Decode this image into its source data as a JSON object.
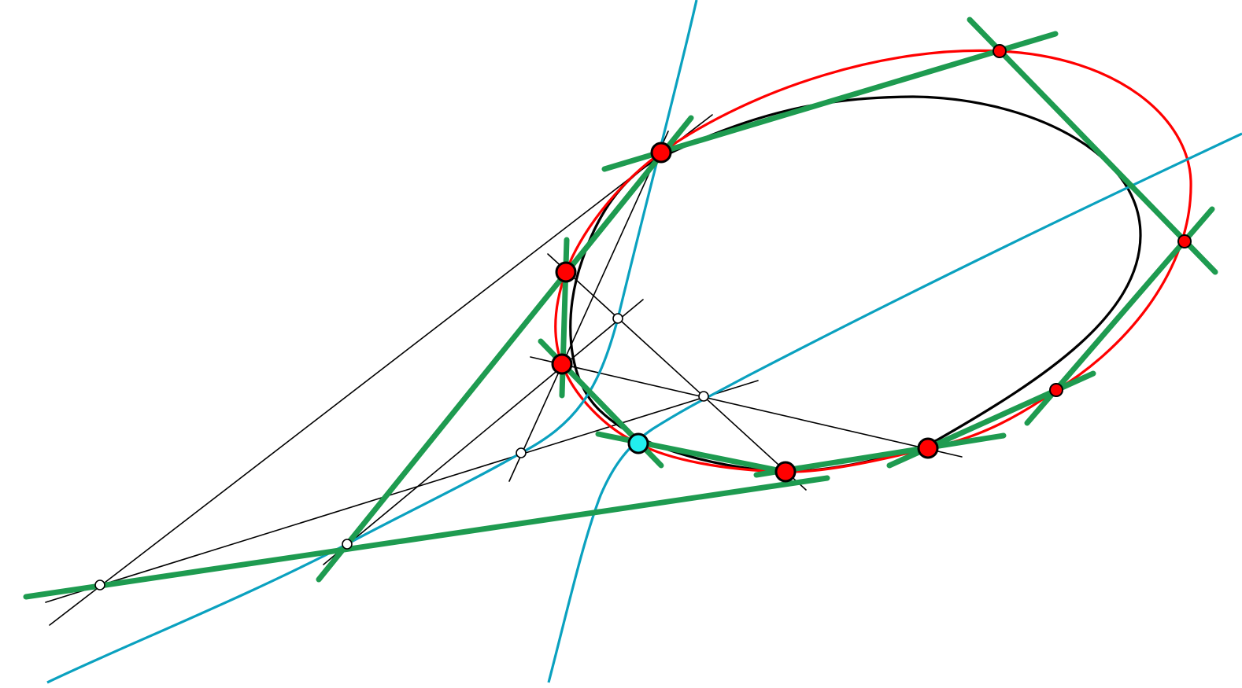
{
  "diagram": {
    "background": "#ffffff",
    "colors": {
      "black_conic": "#000000",
      "red_conic": "#ff0000",
      "blue_cubic": "#0aa1bf",
      "green_tangent": "#1e9b50",
      "thin_line": "#000000",
      "red_point_fill": "#ff0000",
      "cyan_point_fill": "#22eeee",
      "white_point_fill": "#ffffff",
      "point_stroke": "#000000"
    },
    "legend": "none",
    "text_labels": []
  }
}
